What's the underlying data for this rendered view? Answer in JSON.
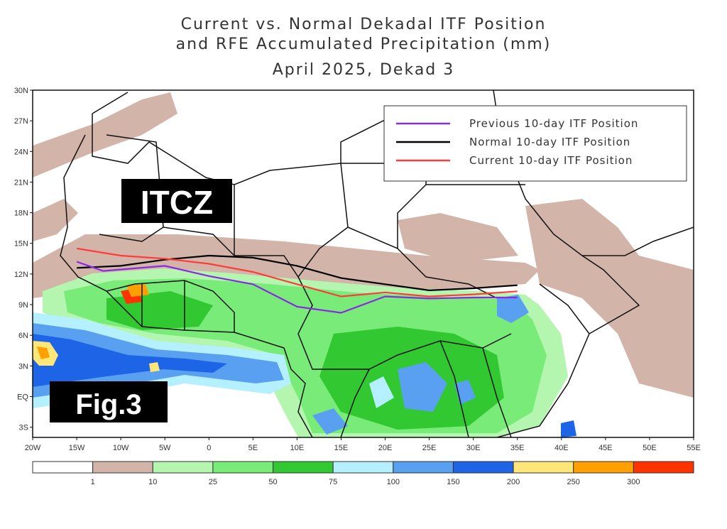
{
  "titles": {
    "line1": "Current vs. Normal Dekadal ITF Position",
    "line2": "and RFE Accumulated Precipitation (mm)",
    "line3": "April 2025, Dekad 3"
  },
  "badges": {
    "itcz": "ITCZ",
    "fig": "Fig.3"
  },
  "legend": [
    {
      "label": "Previous 10-day ITF Position",
      "color": "#8a2be2"
    },
    {
      "label": "Normal 10-day ITF Position",
      "color": "#000000"
    },
    {
      "label": "Current 10-day ITF Position",
      "color": "#ff3b3b"
    }
  ],
  "axes": {
    "lat_labels": [
      "30N",
      "27N",
      "24N",
      "21N",
      "18N",
      "15N",
      "12N",
      "9N",
      "6N",
      "3N",
      "EQ",
      "3S"
    ],
    "lon_labels": [
      "20W",
      "15W",
      "10W",
      "5W",
      "0",
      "5E",
      "10E",
      "15E",
      "20E",
      "25E",
      "30E",
      "35E",
      "40E",
      "45E",
      "50E",
      "55E"
    ]
  },
  "colorbar": {
    "colors": [
      "#ffffff",
      "#d2b4a8",
      "#b4f5b0",
      "#78eb78",
      "#32c832",
      "#b4f0ff",
      "#5aa0f0",
      "#1e64e6",
      "#ffe678",
      "#ffa000",
      "#ff3200"
    ],
    "labels": [
      "1",
      "10",
      "25",
      "50",
      "75",
      "100",
      "150",
      "200",
      "250",
      "300"
    ]
  },
  "itf_lines": {
    "previous": [
      [
        -15,
        13.2
      ],
      [
        -12,
        12.3
      ],
      [
        -5,
        12.8
      ],
      [
        0,
        11.8
      ],
      [
        5,
        11.0
      ],
      [
        10,
        8.8
      ],
      [
        15,
        8.2
      ],
      [
        20,
        9.8
      ],
      [
        25,
        9.6
      ],
      [
        30,
        9.7
      ],
      [
        35,
        9.7
      ]
    ],
    "normal": [
      [
        -15,
        12.6
      ],
      [
        -10,
        12.8
      ],
      [
        -5,
        13.4
      ],
      [
        0,
        13.8
      ],
      [
        5,
        13.6
      ],
      [
        10,
        12.8
      ],
      [
        15,
        11.6
      ],
      [
        20,
        11.0
      ],
      [
        25,
        10.4
      ],
      [
        30,
        10.6
      ],
      [
        35,
        10.9
      ]
    ],
    "current": [
      [
        -15,
        14.5
      ],
      [
        -10,
        13.8
      ],
      [
        -5,
        13.5
      ],
      [
        0,
        13.0
      ],
      [
        5,
        12.2
      ],
      [
        10,
        11.0
      ],
      [
        15,
        9.8
      ],
      [
        20,
        10.2
      ],
      [
        25,
        9.8
      ],
      [
        30,
        10.0
      ],
      [
        35,
        10.3
      ]
    ]
  },
  "colors": {
    "ocean_rain": "#5aa0f0",
    "land_green": "#78eb78",
    "dry_tan": "#d2b4a8",
    "boundary": "#111111"
  }
}
